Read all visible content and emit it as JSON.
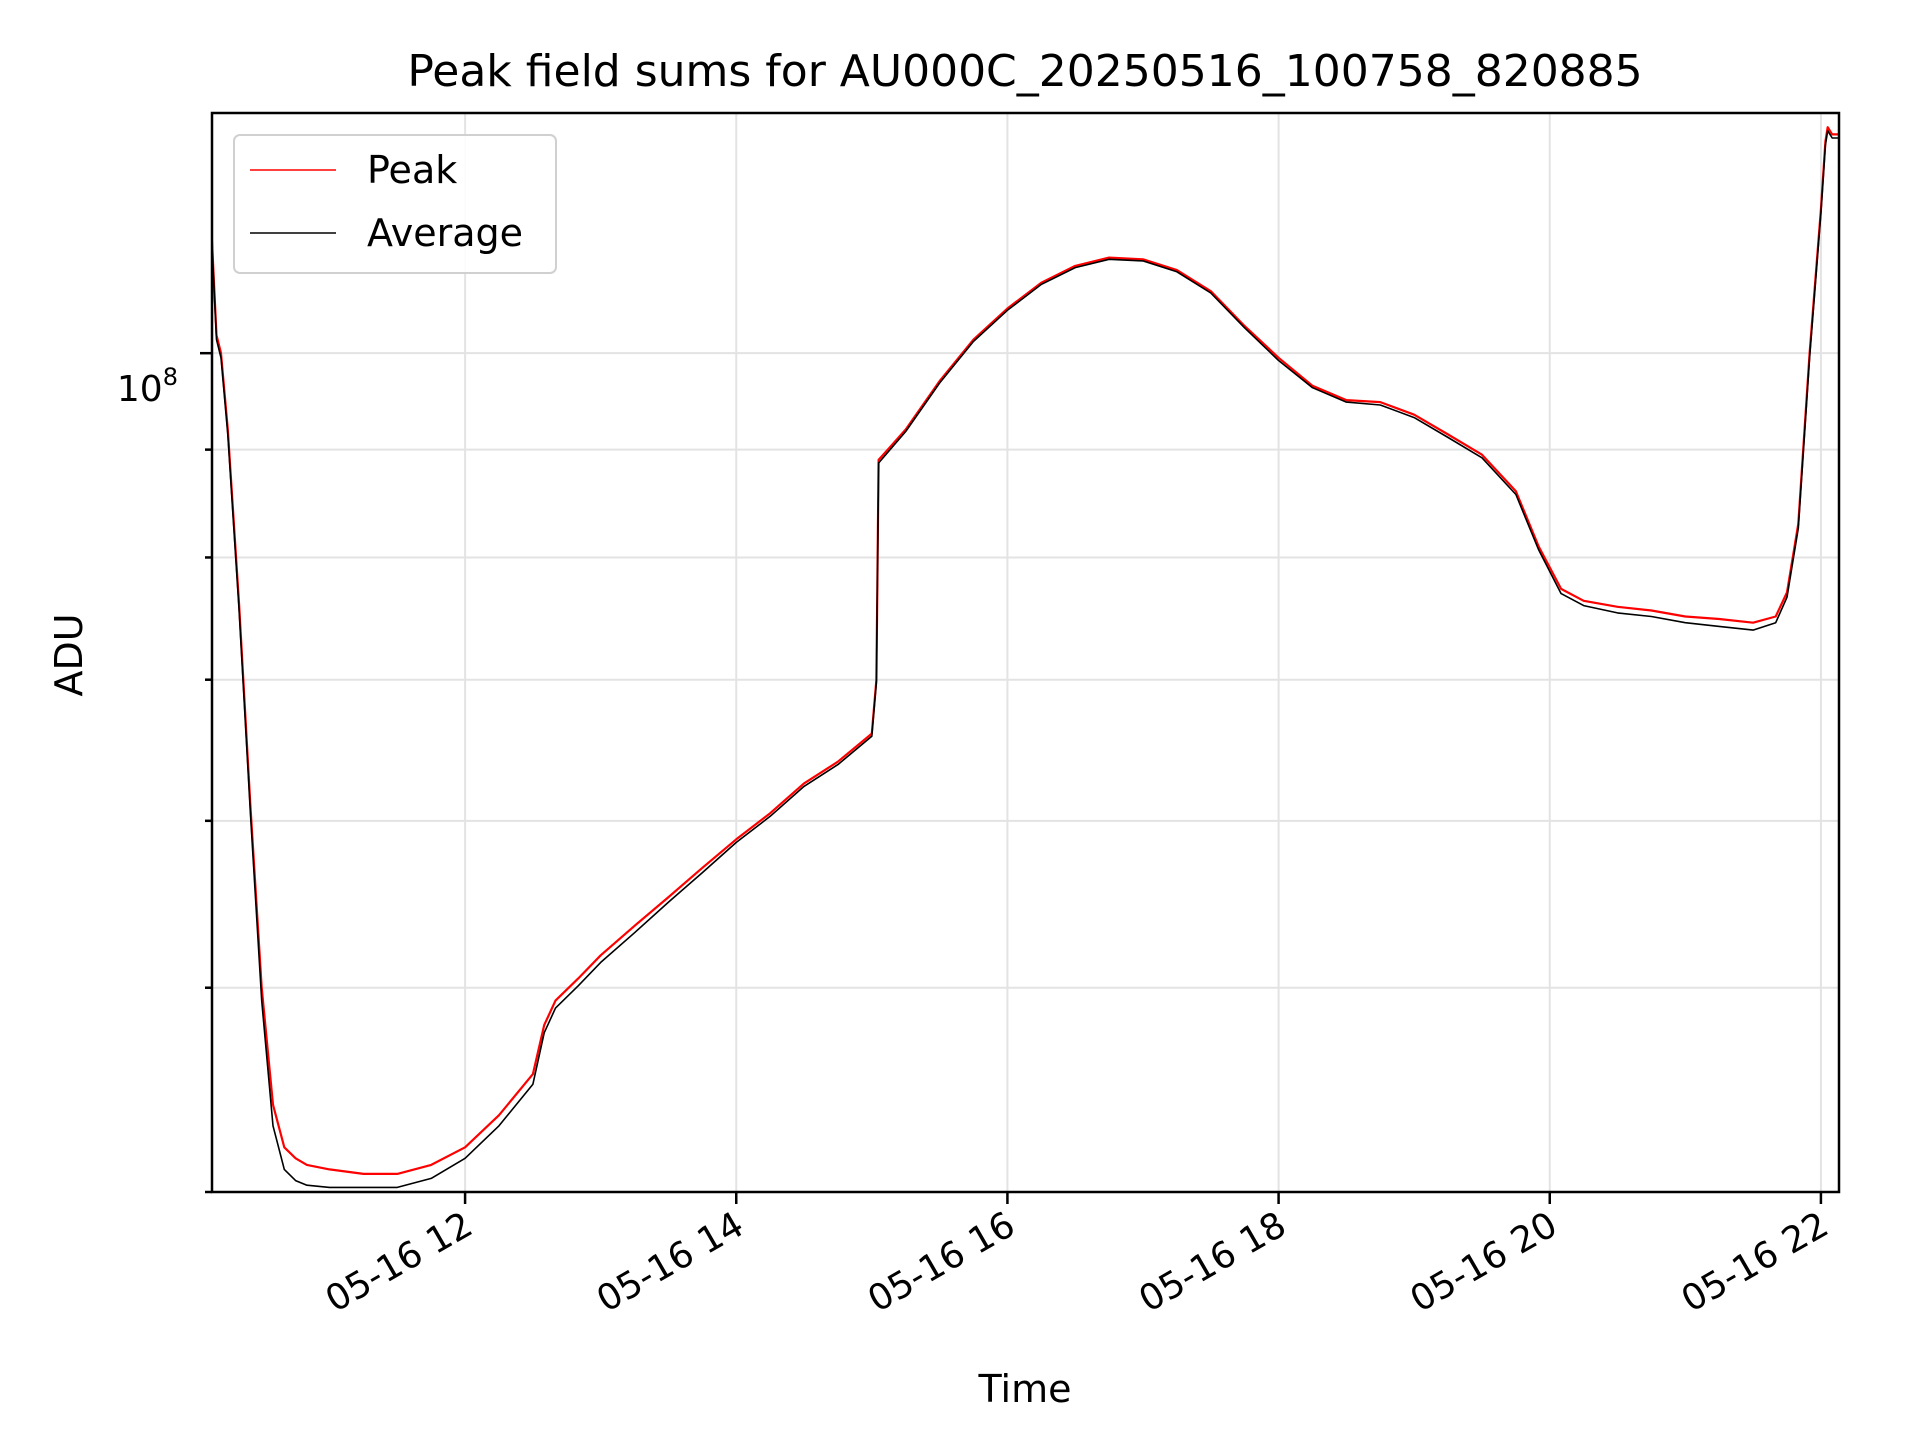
{
  "chart_data": {
    "type": "line",
    "title": "Peak field sums for AU000C_20250516_100758_820885",
    "xlabel": "Time",
    "ylabel": "ADU",
    "x_axis": {
      "kind": "datetime",
      "range": [
        "2025-05-16 10:08",
        "2025-05-16 22:08"
      ],
      "ticks": [
        {
          "value": "2025-05-16 12:00",
          "label": "05-16 12"
        },
        {
          "value": "2025-05-16 14:00",
          "label": "05-16 14"
        },
        {
          "value": "2025-05-16 16:00",
          "label": "05-16 16"
        },
        {
          "value": "2025-05-16 18:00",
          "label": "05-16 18"
        },
        {
          "value": "2025-05-16 20:00",
          "label": "05-16 20"
        },
        {
          "value": "2025-05-16 22:00",
          "label": "05-16 22"
        }
      ],
      "tick_label_rotation": 30
    },
    "y_axis": {
      "scale": "log",
      "range": [
        40000000,
        130000000
      ],
      "major_tick": {
        "value": 100000000,
        "label_base": "10",
        "label_exp": "8"
      },
      "minor_ticks": [
        40000000,
        50000000,
        60000000,
        70000000,
        80000000,
        90000000
      ]
    },
    "grid": true,
    "legend": "upper-left",
    "series": [
      {
        "name": "Peak",
        "color": "#ff0000",
        "points": [
          [
            "2025-05-16 10:08",
            113000000
          ],
          [
            "2025-05-16 10:10",
            102000000
          ],
          [
            "2025-05-16 10:12",
            100000000
          ],
          [
            "2025-05-16 10:15",
            92000000
          ],
          [
            "2025-05-16 10:20",
            76000000
          ],
          [
            "2025-05-16 10:25",
            61000000
          ],
          [
            "2025-05-16 10:30",
            50000000
          ],
          [
            "2025-05-16 10:35",
            44000000
          ],
          [
            "2025-05-16 10:40",
            42000000
          ],
          [
            "2025-05-16 10:45",
            41500000
          ],
          [
            "2025-05-16 10:50",
            41200000
          ],
          [
            "2025-05-16 11:00",
            41000000
          ],
          [
            "2025-05-16 11:15",
            40800000
          ],
          [
            "2025-05-16 11:30",
            40800000
          ],
          [
            "2025-05-16 11:45",
            41200000
          ],
          [
            "2025-05-16 12:00",
            42000000
          ],
          [
            "2025-05-16 12:15",
            43500000
          ],
          [
            "2025-05-16 12:30",
            45500000
          ],
          [
            "2025-05-16 12:35",
            48000000
          ],
          [
            "2025-05-16 12:40",
            49300000
          ],
          [
            "2025-05-16 12:50",
            50500000
          ],
          [
            "2025-05-16 13:00",
            51800000
          ],
          [
            "2025-05-16 13:15",
            53500000
          ],
          [
            "2025-05-16 13:30",
            55200000
          ],
          [
            "2025-05-16 13:45",
            57000000
          ],
          [
            "2025-05-16 14:00",
            58800000
          ],
          [
            "2025-05-16 14:15",
            60500000
          ],
          [
            "2025-05-16 14:30",
            62500000
          ],
          [
            "2025-05-16 14:45",
            64000000
          ],
          [
            "2025-05-16 15:00",
            66000000
          ],
          [
            "2025-05-16 15:02",
            70000000
          ],
          [
            "2025-05-16 15:03",
            89000000
          ],
          [
            "2025-05-16 15:15",
            92000000
          ],
          [
            "2025-05-16 15:30",
            97000000
          ],
          [
            "2025-05-16 15:45",
            101500000
          ],
          [
            "2025-05-16 16:00",
            105000000
          ],
          [
            "2025-05-16 16:15",
            108000000
          ],
          [
            "2025-05-16 16:30",
            110000000
          ],
          [
            "2025-05-16 16:45",
            111000000
          ],
          [
            "2025-05-16 17:00",
            110800000
          ],
          [
            "2025-05-16 17:15",
            109500000
          ],
          [
            "2025-05-16 17:30",
            107000000
          ],
          [
            "2025-05-16 17:45",
            103000000
          ],
          [
            "2025-05-16 18:00",
            99500000
          ],
          [
            "2025-05-16 18:15",
            96500000
          ],
          [
            "2025-05-16 18:30",
            95000000
          ],
          [
            "2025-05-16 18:45",
            94800000
          ],
          [
            "2025-05-16 19:00",
            93500000
          ],
          [
            "2025-05-16 19:15",
            91500000
          ],
          [
            "2025-05-16 19:30",
            89500000
          ],
          [
            "2025-05-16 19:45",
            86000000
          ],
          [
            "2025-05-16 19:55",
            81000000
          ],
          [
            "2025-05-16 20:05",
            77300000
          ],
          [
            "2025-05-16 20:15",
            76300000
          ],
          [
            "2025-05-16 20:30",
            75800000
          ],
          [
            "2025-05-16 20:45",
            75500000
          ],
          [
            "2025-05-16 21:00",
            75000000
          ],
          [
            "2025-05-16 21:15",
            74800000
          ],
          [
            "2025-05-16 21:30",
            74500000
          ],
          [
            "2025-05-16 21:40",
            75000000
          ],
          [
            "2025-05-16 21:45",
            77000000
          ],
          [
            "2025-05-16 21:50",
            83000000
          ],
          [
            "2025-05-16 21:55",
            100000000
          ],
          [
            "2025-05-16 22:00",
            117000000
          ],
          [
            "2025-05-16 22:02",
            126000000
          ],
          [
            "2025-05-16 22:03",
            128000000
          ],
          [
            "2025-05-16 22:05",
            127000000
          ],
          [
            "2025-05-16 22:08",
            127000000
          ]
        ]
      },
      {
        "name": "Average",
        "color": "#000000",
        "points": [
          [
            "2025-05-16 10:08",
            112500000
          ],
          [
            "2025-05-16 10:10",
            101500000
          ],
          [
            "2025-05-16 10:12",
            99500000
          ],
          [
            "2025-05-16 10:15",
            91500000
          ],
          [
            "2025-05-16 10:20",
            75500000
          ],
          [
            "2025-05-16 10:25",
            60500000
          ],
          [
            "2025-05-16 10:30",
            49300000
          ],
          [
            "2025-05-16 10:35",
            43000000
          ],
          [
            "2025-05-16 10:40",
            41000000
          ],
          [
            "2025-05-16 10:45",
            40500000
          ],
          [
            "2025-05-16 10:50",
            40300000
          ],
          [
            "2025-05-16 11:00",
            40200000
          ],
          [
            "2025-05-16 11:15",
            40200000
          ],
          [
            "2025-05-16 11:30",
            40200000
          ],
          [
            "2025-05-16 11:45",
            40600000
          ],
          [
            "2025-05-16 12:00",
            41500000
          ],
          [
            "2025-05-16 12:15",
            43000000
          ],
          [
            "2025-05-16 12:30",
            45000000
          ],
          [
            "2025-05-16 12:35",
            47600000
          ],
          [
            "2025-05-16 12:40",
            48900000
          ],
          [
            "2025-05-16 12:50",
            50100000
          ],
          [
            "2025-05-16 13:00",
            51400000
          ],
          [
            "2025-05-16 13:15",
            53100000
          ],
          [
            "2025-05-16 13:30",
            54900000
          ],
          [
            "2025-05-16 13:45",
            56700000
          ],
          [
            "2025-05-16 14:00",
            58600000
          ],
          [
            "2025-05-16 14:15",
            60300000
          ],
          [
            "2025-05-16 14:30",
            62300000
          ],
          [
            "2025-05-16 14:45",
            63800000
          ],
          [
            "2025-05-16 15:00",
            65800000
          ],
          [
            "2025-05-16 15:02",
            69800000
          ],
          [
            "2025-05-16 15:03",
            88700000
          ],
          [
            "2025-05-16 15:15",
            91800000
          ],
          [
            "2025-05-16 15:30",
            96800000
          ],
          [
            "2025-05-16 15:45",
            101300000
          ],
          [
            "2025-05-16 16:00",
            104800000
          ],
          [
            "2025-05-16 16:15",
            107800000
          ],
          [
            "2025-05-16 16:30",
            109800000
          ],
          [
            "2025-05-16 16:45",
            110800000
          ],
          [
            "2025-05-16 17:00",
            110600000
          ],
          [
            "2025-05-16 17:15",
            109300000
          ],
          [
            "2025-05-16 17:30",
            106800000
          ],
          [
            "2025-05-16 17:45",
            102800000
          ],
          [
            "2025-05-16 18:00",
            99200000
          ],
          [
            "2025-05-16 18:15",
            96300000
          ],
          [
            "2025-05-16 18:30",
            94800000
          ],
          [
            "2025-05-16 18:45",
            94500000
          ],
          [
            "2025-05-16 19:00",
            93200000
          ],
          [
            "2025-05-16 19:15",
            91200000
          ],
          [
            "2025-05-16 19:30",
            89200000
          ],
          [
            "2025-05-16 19:45",
            85700000
          ],
          [
            "2025-05-16 19:55",
            80700000
          ],
          [
            "2025-05-16 20:05",
            76900000
          ],
          [
            "2025-05-16 20:15",
            75900000
          ],
          [
            "2025-05-16 20:30",
            75300000
          ],
          [
            "2025-05-16 20:45",
            75000000
          ],
          [
            "2025-05-16 21:00",
            74500000
          ],
          [
            "2025-05-16 21:15",
            74200000
          ],
          [
            "2025-05-16 21:30",
            73900000
          ],
          [
            "2025-05-16 21:40",
            74500000
          ],
          [
            "2025-05-16 21:45",
            76600000
          ],
          [
            "2025-05-16 21:50",
            82600000
          ],
          [
            "2025-05-16 21:55",
            99500000
          ],
          [
            "2025-05-16 22:00",
            116500000
          ],
          [
            "2025-05-16 22:02",
            125500000
          ],
          [
            "2025-05-16 22:03",
            127500000
          ],
          [
            "2025-05-16 22:05",
            126500000
          ],
          [
            "2025-05-16 22:08",
            126500000
          ]
        ]
      }
    ]
  }
}
